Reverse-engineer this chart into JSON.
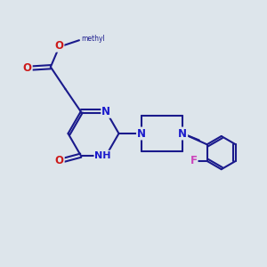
{
  "bg_color": "#dde5eb",
  "bond_color": "#1a1a8c",
  "bond_width": 1.5,
  "atom_colors": {
    "N": "#1a1acc",
    "O": "#cc1a1a",
    "F": "#cc44bb",
    "C": "#1a1a8c"
  },
  "font_size": 8.5
}
